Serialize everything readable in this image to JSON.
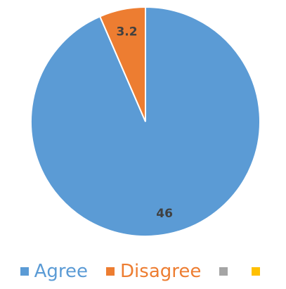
{
  "chart_data": {
    "type": "pie",
    "categories": [
      "Agree",
      "Disagree",
      "",
      ""
    ],
    "values": [
      46,
      3.2,
      0,
      0
    ],
    "data_labels": [
      "46",
      "3.2",
      "",
      ""
    ],
    "colors": [
      "#5b9bd5",
      "#ed7d31",
      "#a5a5a5",
      "#ffc000"
    ],
    "legend_text_colors": [
      "#5b9bd5",
      "#ed7d31",
      "#a5a5a5",
      "#ffc000"
    ],
    "legend": "bottom",
    "title": ""
  }
}
